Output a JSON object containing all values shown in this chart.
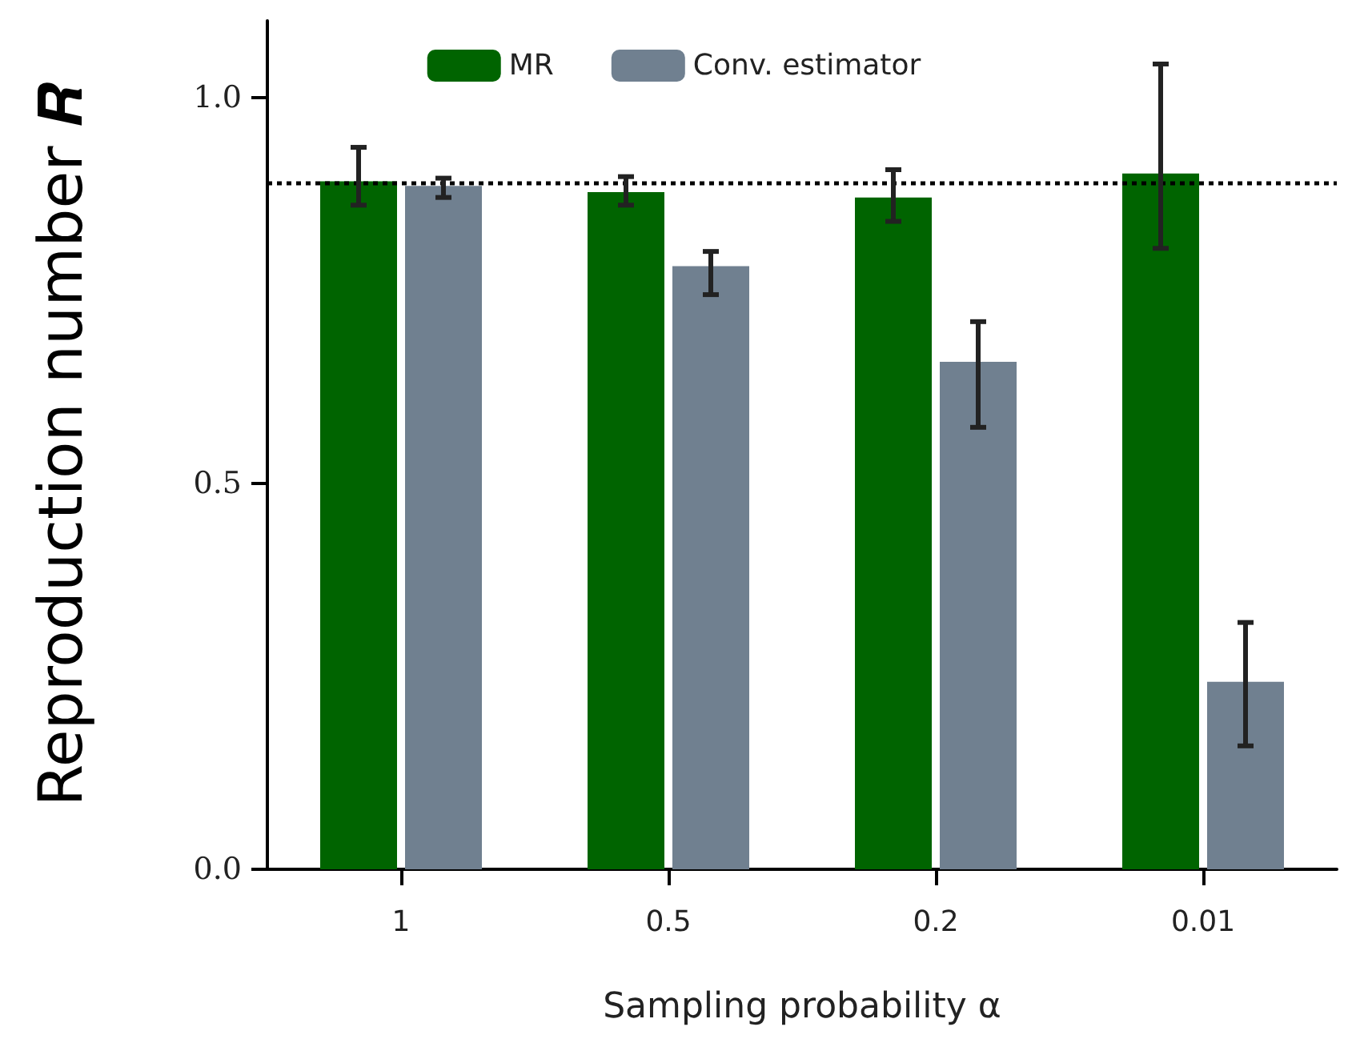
{
  "chart_data": {
    "type": "bar",
    "xlabel": "Sampling probability α",
    "ylabel": "Reproduction number 𝑹",
    "categories": [
      "1",
      "0.5",
      "0.2",
      "0.01"
    ],
    "series": [
      {
        "name": "MR",
        "color": "#006400",
        "values": [
          0.892,
          0.878,
          0.871,
          0.902
        ],
        "errors": [
          [
            0.861,
            0.936
          ],
          [
            0.861,
            0.898
          ],
          [
            0.84,
            0.907
          ],
          [
            0.805,
            1.044
          ]
        ]
      },
      {
        "name": "Conv. estimator",
        "color": "#708090",
        "values": [
          0.886,
          0.782,
          0.658,
          0.243
        ],
        "errors": [
          [
            0.871,
            0.896
          ],
          [
            0.745,
            0.801
          ],
          [
            0.573,
            0.71
          ],
          [
            0.16,
            0.32
          ]
        ]
      }
    ],
    "ylim": [
      0,
      1.1
    ],
    "yticks": [
      {
        "value": 0,
        "label": "0.0"
      },
      {
        "value": 0.5,
        "label": "0.5"
      },
      {
        "value": 1,
        "label": "1.0"
      }
    ],
    "ref_lines": [
      {
        "axis": "y",
        "value": 0.886,
        "label": null,
        "color": "#000000",
        "line_style": "dotted"
      }
    ],
    "legend": "top",
    "grid": false
  }
}
